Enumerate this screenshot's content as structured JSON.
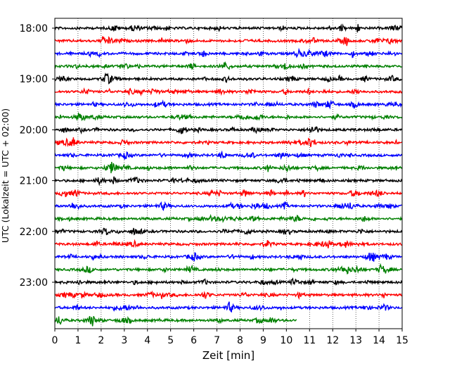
{
  "chart_data": {
    "type": "line",
    "xlabel": "Zeit  [min]",
    "ylabel": "UTC (Lokalzeit = UTC + 02:00)",
    "xlim": [
      0,
      15
    ],
    "x_ticks": [
      "0",
      "1",
      "2",
      "3",
      "4",
      "5",
      "6",
      "7",
      "8",
      "9",
      "10",
      "11",
      "12",
      "13",
      "14",
      "15"
    ],
    "y_ticks": [
      "18:00",
      "19:00",
      "20:00",
      "21:00",
      "22:00",
      "23:00"
    ],
    "grid": "vertical dotted",
    "colors": [
      "#000000",
      "#ff0000",
      "#0000ff",
      "#008000"
    ],
    "traces": [
      {
        "start": "18:00",
        "color": "#000000",
        "x_end": 15
      },
      {
        "start": "18:15",
        "color": "#ff0000",
        "x_end": 15
      },
      {
        "start": "18:30",
        "color": "#0000ff",
        "x_end": 15
      },
      {
        "start": "18:45",
        "color": "#008000",
        "x_end": 15
      },
      {
        "start": "19:00",
        "color": "#000000",
        "x_end": 15
      },
      {
        "start": "19:15",
        "color": "#ff0000",
        "x_end": 15
      },
      {
        "start": "19:30",
        "color": "#0000ff",
        "x_end": 15
      },
      {
        "start": "19:45",
        "color": "#008000",
        "x_end": 15
      },
      {
        "start": "20:00",
        "color": "#000000",
        "x_end": 15
      },
      {
        "start": "20:15",
        "color": "#ff0000",
        "x_end": 15
      },
      {
        "start": "20:30",
        "color": "#0000ff",
        "x_end": 15
      },
      {
        "start": "20:45",
        "color": "#008000",
        "x_end": 15
      },
      {
        "start": "21:00",
        "color": "#000000",
        "x_end": 15
      },
      {
        "start": "21:15",
        "color": "#ff0000",
        "x_end": 15
      },
      {
        "start": "21:30",
        "color": "#0000ff",
        "x_end": 15
      },
      {
        "start": "21:45",
        "color": "#008000",
        "x_end": 15
      },
      {
        "start": "22:00",
        "color": "#000000",
        "x_end": 15
      },
      {
        "start": "22:15",
        "color": "#ff0000",
        "x_end": 15
      },
      {
        "start": "22:30",
        "color": "#0000ff",
        "x_end": 15
      },
      {
        "start": "22:45",
        "color": "#008000",
        "x_end": 15
      },
      {
        "start": "23:00",
        "color": "#000000",
        "x_end": 15
      },
      {
        "start": "23:15",
        "color": "#ff0000",
        "x_end": 15
      },
      {
        "start": "23:30",
        "color": "#0000ff",
        "x_end": 15
      },
      {
        "start": "23:45",
        "color": "#008000",
        "x_end": 10.45
      }
    ]
  }
}
